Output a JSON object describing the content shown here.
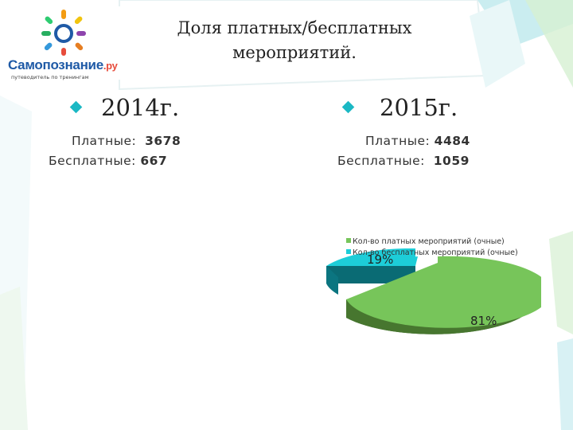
{
  "slide": {
    "title_line1": "Доля платных/бесплатных",
    "title_line2": "мероприятий."
  },
  "logo": {
    "wordmark": "Самопознание",
    "domain": ".ру",
    "tagline": "путеводитель по тренингам"
  },
  "year2014": {
    "label": "2014г.",
    "paid_label": "Платные:",
    "paid_value": "3678",
    "free_label": "Бесплатные:",
    "free_value": "667"
  },
  "year2015": {
    "label": "2015г.",
    "paid_label": "Платные:",
    "paid_value": "4484",
    "free_label": "Бесплатные:",
    "free_value": "1059"
  },
  "chart_data": {
    "type": "pie",
    "title": "",
    "legend": [
      "Кол-во платных мероприятий (очные)",
      "Кол-во бесплатных мероприятий (очные)"
    ],
    "slices": [
      {
        "name": "Кол-во платных мероприятий (очные)",
        "value": 81,
        "label": "81%",
        "color": "#6fc24b"
      },
      {
        "name": "Кол-во бесплатных мероприятий (очные)",
        "value": 19,
        "label": "19%",
        "color": "#1ecfd9"
      }
    ]
  }
}
